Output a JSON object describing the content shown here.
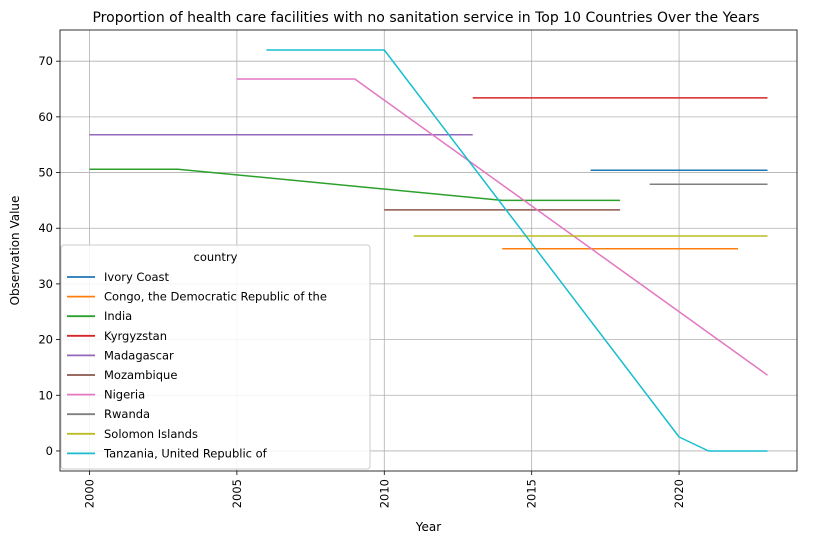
{
  "chart_data": {
    "type": "line",
    "title": "Proportion of health care facilities with no sanitation service in Top 10 Countries Over the Years",
    "xlabel": "Year",
    "ylabel": "Observation Value",
    "xlim": [
      1999,
      2024
    ],
    "ylim": [
      -3.6,
      75.6
    ],
    "xticks": [
      2000,
      2005,
      2010,
      2015,
      2020
    ],
    "yticks": [
      0,
      10,
      20,
      30,
      40,
      50,
      60,
      70
    ],
    "grid": true,
    "legend": {
      "title": "country",
      "position": "lower-left"
    },
    "series": [
      {
        "name": "Ivory Coast",
        "color": "#1f77b4",
        "x": [
          2017,
          2023
        ],
        "y": [
          50.4,
          50.4
        ]
      },
      {
        "name": "Congo, the Democratic Republic of the",
        "color": "#ff7f0e",
        "x": [
          2014,
          2022
        ],
        "y": [
          36.3,
          36.3
        ]
      },
      {
        "name": "India",
        "color": "#2ca02c",
        "x": [
          2000,
          2003,
          2014,
          2018
        ],
        "y": [
          50.6,
          50.6,
          45.0,
          45.0
        ]
      },
      {
        "name": "Kyrgyzstan",
        "color": "#d62728",
        "x": [
          2013,
          2023
        ],
        "y": [
          63.4,
          63.4
        ]
      },
      {
        "name": "Madagascar",
        "color": "#9467bd",
        "x": [
          2000,
          2013
        ],
        "y": [
          56.8,
          56.8
        ]
      },
      {
        "name": "Mozambique",
        "color": "#8c564b",
        "x": [
          2010,
          2018
        ],
        "y": [
          43.3,
          43.3
        ]
      },
      {
        "name": "Nigeria",
        "color": "#e377c2",
        "x": [
          2005,
          2009,
          2023
        ],
        "y": [
          66.8,
          66.8,
          13.6
        ]
      },
      {
        "name": "Rwanda",
        "color": "#7f7f7f",
        "x": [
          2019,
          2023
        ],
        "y": [
          47.9,
          47.9
        ]
      },
      {
        "name": "Solomon Islands",
        "color": "#bcbd22",
        "x": [
          2011,
          2023
        ],
        "y": [
          38.6,
          38.6
        ]
      },
      {
        "name": "Tanzania, United Republic of",
        "color": "#17becf",
        "x": [
          2006,
          2010,
          2020,
          2021,
          2023
        ],
        "y": [
          72.0,
          72.0,
          2.5,
          0.0,
          0.0
        ]
      }
    ]
  }
}
